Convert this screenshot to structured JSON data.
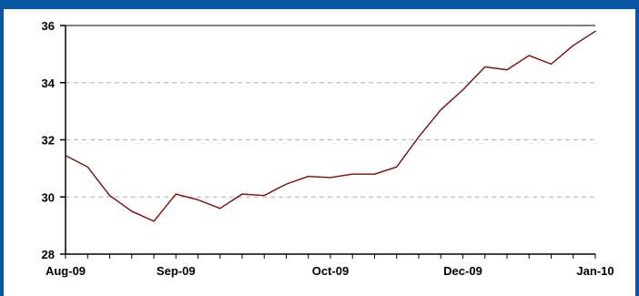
{
  "chart_data": {
    "type": "line",
    "title": "",
    "xlabel": "",
    "ylabel": "",
    "ylim": [
      28,
      36
    ],
    "yticks": [
      28,
      30,
      32,
      34,
      36
    ],
    "grid": {
      "horizontal": true,
      "style": "dashed"
    },
    "x_tick_labels": [
      {
        "label": "Aug-09",
        "index": 0
      },
      {
        "label": "Sep-09",
        "index": 5
      },
      {
        "label": "Oct-09",
        "index": 12
      },
      {
        "label": "Dec-09",
        "index": 18
      },
      {
        "label": "Jan-10",
        "index": 24
      }
    ],
    "series": [
      {
        "color": "#7a0a0a",
        "values": [
          31.45,
          31.05,
          30.05,
          29.5,
          29.15,
          30.1,
          29.9,
          29.6,
          30.1,
          30.05,
          30.45,
          30.72,
          30.68,
          30.8,
          30.8,
          31.05,
          32.1,
          33.05,
          33.75,
          34.55,
          34.45,
          34.95,
          34.65,
          35.3,
          35.8
        ]
      }
    ],
    "colors": {
      "frame": "#0a56a3",
      "axis": "#000000",
      "grid": "#b0b0b0"
    }
  }
}
